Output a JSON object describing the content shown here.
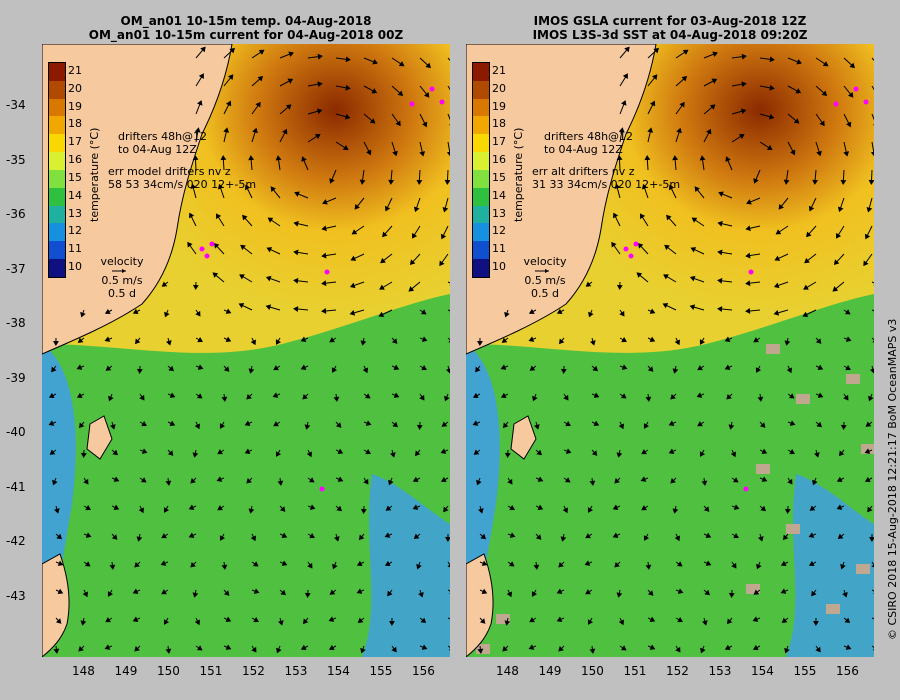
{
  "left": {
    "title_line1": "OM_an01 10-15m temp. 04-Aug-2018",
    "title_line2": "OM_an01 10-15m current for 04-Aug-2018 00Z",
    "drifter_line1": "drifters 48h@12",
    "drifter_line2": "to 04-Aug 12Z",
    "err_line1": "err model drifters nv z",
    "err_line2": "58 53 34cm/s 020 12+-5m"
  },
  "right": {
    "title_line1": "IMOS GSLA current for 03-Aug-2018 12Z",
    "title_line2": "IMOS L3S-3d SST at 04-Aug-2018 09:20Z",
    "drifter_line1": "drifters 48h@12",
    "drifter_line2": "to 04-Aug 12Z",
    "err_line1": "err alt drifters nv z",
    "err_line2": "31 33 34cm/s 020 12+-5m"
  },
  "legend": {
    "velocity": "velocity",
    "speed": "0.5 m/s",
    "duration": "0.5 d"
  },
  "colorbar": {
    "title": "temperature (°C)",
    "ticks": [
      "21",
      "20",
      "19",
      "18",
      "17",
      "16",
      "15",
      "14",
      "13",
      "12",
      "11",
      "10"
    ],
    "colors": [
      "#8b1a00",
      "#b04a00",
      "#d87800",
      "#f0a800",
      "#f8d800",
      "#d8f030",
      "#80e040",
      "#30c040",
      "#20b0a0",
      "#1890e0",
      "#1050d0",
      "#101080"
    ]
  },
  "axes": {
    "lat_ticks": [
      "-34",
      "-35",
      "-36",
      "-37",
      "-38",
      "-39",
      "-40",
      "-41",
      "-42",
      "-43"
    ],
    "lon_ticks": [
      "148",
      "149",
      "150",
      "151",
      "152",
      "153",
      "154",
      "155",
      "156"
    ]
  },
  "credit": "© CSIRO 2018  15-Aug-2018 12:21:17 BoM OceanMAPS v3",
  "colors": {
    "land": "#f7c99f",
    "ocean_warm": "#c04a10",
    "ocean_mid": "#e8d030",
    "ocean_cool": "#50c040",
    "ocean_cold": "#40a0e0",
    "drifter": "#ff00ff",
    "no_data": "#c0a890"
  }
}
